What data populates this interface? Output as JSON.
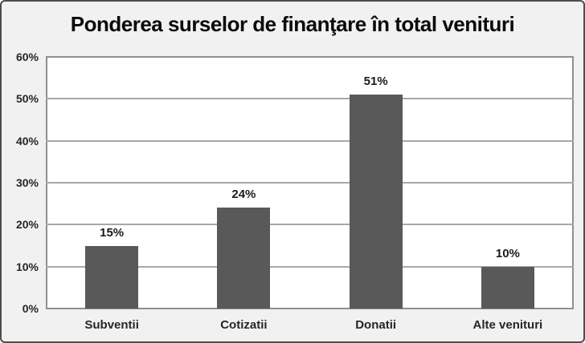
{
  "title": "Ponderea surselor de finanţare în total venituri",
  "chart_data": {
    "type": "bar",
    "title": "Ponderea surselor de finanţare în total venituri",
    "categories": [
      "Subventii",
      "Cotizatii",
      "Donatii",
      "Alte venituri"
    ],
    "values": [
      15,
      24,
      51,
      10
    ],
    "value_labels": [
      "15%",
      "24%",
      "51%",
      "10%"
    ],
    "xlabel": "",
    "ylabel": "",
    "ylim": [
      0,
      60
    ],
    "ytick_values": [
      0,
      10,
      20,
      30,
      40,
      50,
      60
    ],
    "ytick_labels": [
      "0%",
      "10%",
      "20%",
      "30%",
      "40%",
      "50%",
      "60%"
    ],
    "grid": true,
    "legend": false
  },
  "colors": {
    "bar": "#595959",
    "grid": "#a8a8a8",
    "plot_border": "#8f8f8f",
    "plot_background": "#ffffff",
    "panel_background": "#f1f1f1",
    "outer_border": "#4d4d4d",
    "title_text": "#0a0a0a",
    "axis_text": "#262626"
  }
}
